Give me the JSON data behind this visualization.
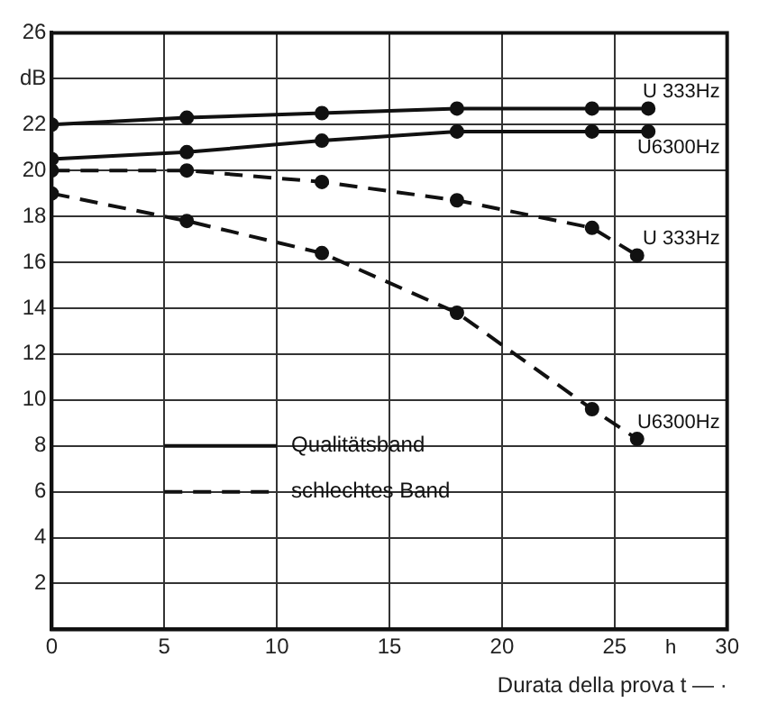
{
  "chart_data": {
    "type": "line",
    "xlabel": "Durata della prova t — ·",
    "series": [
      {
        "name": "U 333Hz",
        "color": "#111111",
        "line_style": "solid",
        "x": [
          0,
          6,
          12,
          18,
          24,
          26.5
        ],
        "values": [
          22,
          22.3,
          22.5,
          22.7,
          22.7,
          22.7
        ]
      },
      {
        "name": "U6300Hz",
        "color": "#111111",
        "line_style": "solid",
        "x": [
          0,
          6,
          12,
          18,
          24,
          26.5
        ],
        "values": [
          20.5,
          20.8,
          21.3,
          21.7,
          21.7,
          21.7
        ]
      },
      {
        "name": "U 333Hz",
        "color": "#111111",
        "line_style": "dashed",
        "x": [
          0,
          6,
          12,
          18,
          24,
          26
        ],
        "values": [
          20,
          20,
          19.5,
          18.7,
          17.5,
          16.3
        ]
      },
      {
        "name": "U6300Hz",
        "color": "#111111",
        "line_style": "dashed",
        "x": [
          0,
          6,
          12,
          18,
          24,
          26
        ],
        "values": [
          19,
          17.8,
          16.4,
          13.8,
          9.6,
          8.3
        ]
      }
    ],
    "marker": "circle",
    "xlim": [
      0,
      30
    ],
    "xticks": [
      0,
      5,
      10,
      15,
      20,
      25,
      30
    ],
    "ylim": [
      0,
      26
    ],
    "yticks": [
      {
        "value": 0,
        "label": null
      },
      2,
      4,
      6,
      8,
      10,
      12,
      14,
      16,
      18,
      20,
      22,
      {
        "value": 24,
        "label": "dB"
      },
      26
    ],
    "grid": true,
    "annotations": [
      "h",
      "Qualitätsband",
      "schlechtes Band"
    ]
  }
}
